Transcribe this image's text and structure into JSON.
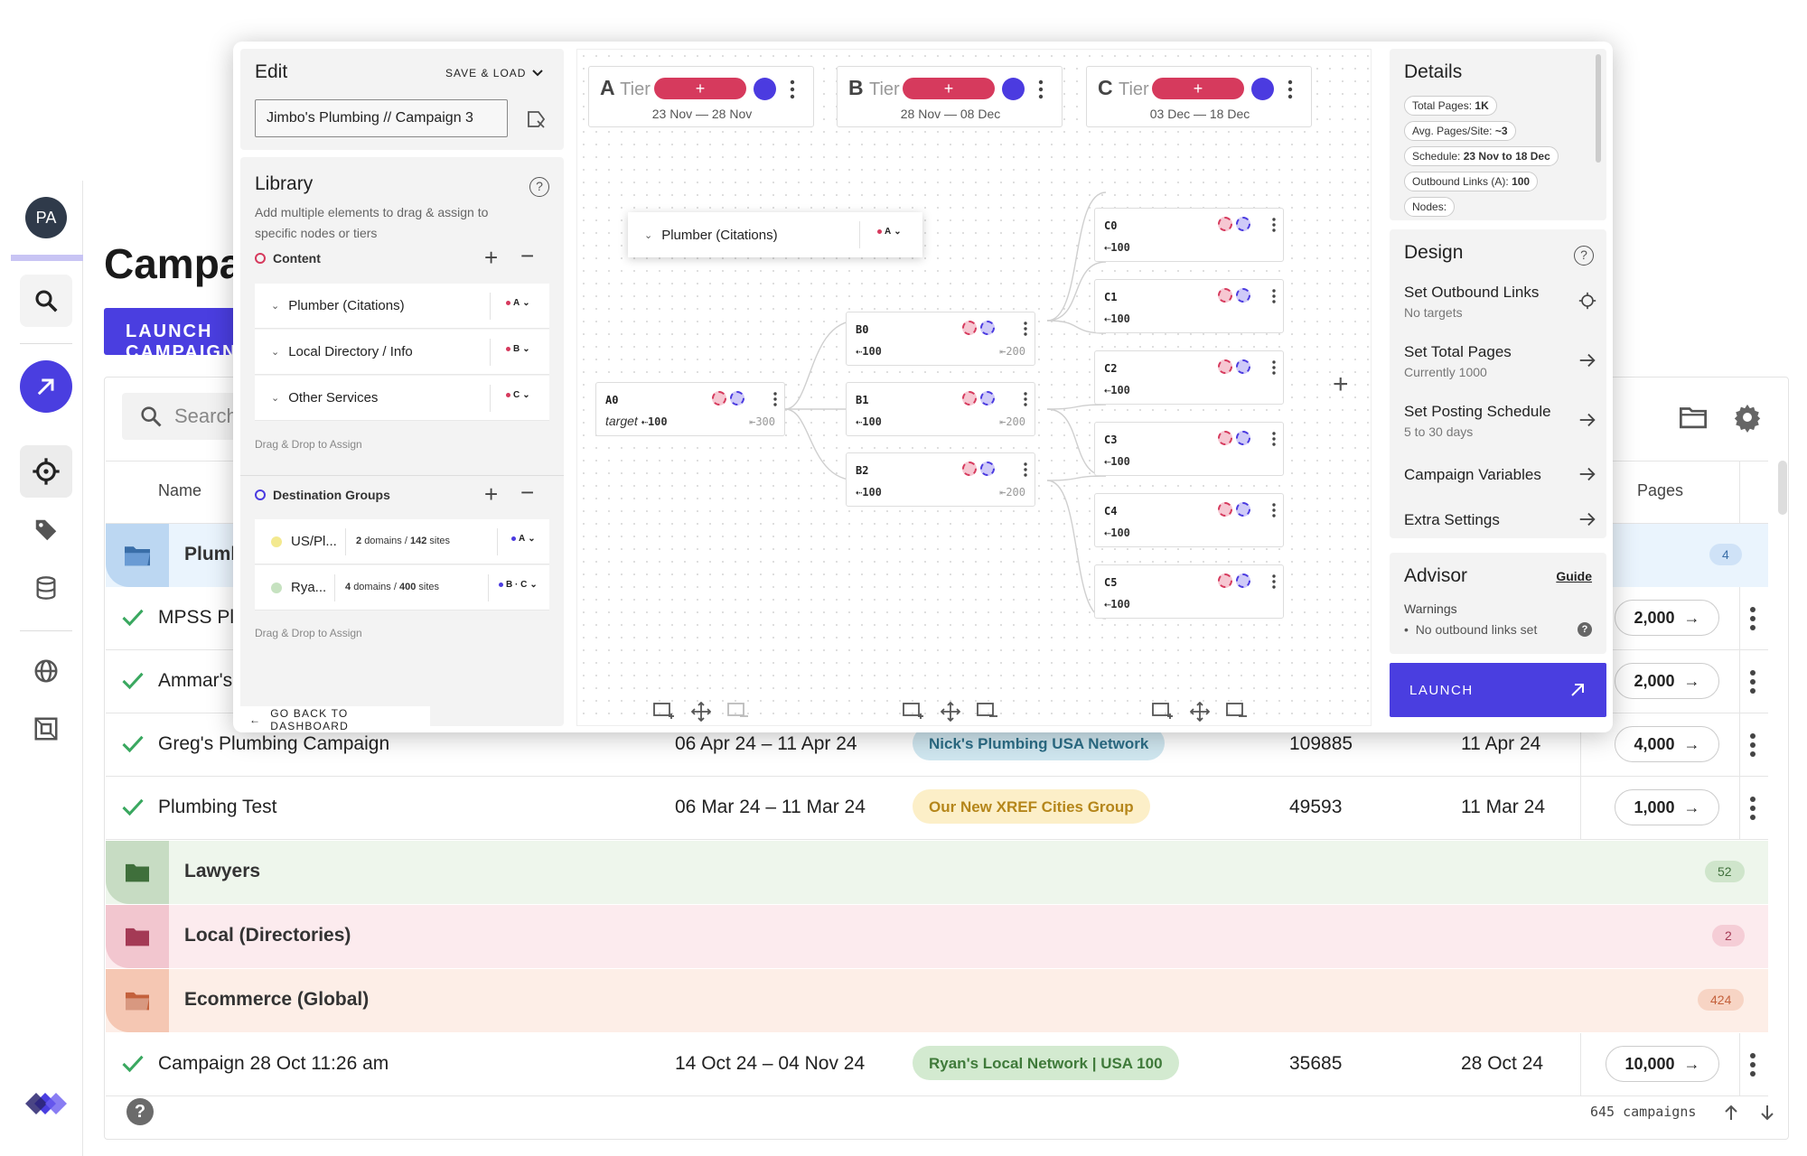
{
  "sidebar": {
    "avatar_initials": "PA"
  },
  "page": {
    "title": "Campaigns",
    "launch_button": "LAUNCH CAMPAIGN",
    "search_placeholder": "Search"
  },
  "table": {
    "headers": {
      "name": "Name",
      "pages": "Pages"
    },
    "groups_top": [
      {
        "name": "Plumbing",
        "count": "4",
        "color": "#bcd7f2",
        "bg": "#eaf4fd",
        "badge_bg": "#cfe2f7",
        "badge_fg": "#3a6ea8"
      }
    ],
    "rows_top": [
      {
        "name": "MPSS Plumbing",
        "pages": "2,000"
      },
      {
        "name": "Ammar's Plumbing",
        "pages": "2,000"
      },
      {
        "name": "Greg's Plumbing Campaign",
        "dates": "06 Apr 24 – 11 Apr 24",
        "group": "Nick's Plumbing USA Network",
        "group_bg": "#cfe6ef",
        "group_fg": "#2c6d86",
        "id": "109885",
        "date2": "11 Apr 24",
        "pages": "4,000"
      },
      {
        "name": "Plumbing Test",
        "dates": "06 Mar 24 – 11 Mar 24",
        "group": "Our New XREF Cities Group",
        "group_bg": "#fcefc8",
        "group_fg": "#b5861a",
        "id": "49593",
        "date2": "11 Mar 24",
        "pages": "1,000"
      }
    ],
    "folders": [
      {
        "name": "Lawyers",
        "count": "52",
        "icon_bg": "#c7dcc3",
        "row_bg": "#eef6ec",
        "icon_color": "#3f6f3b",
        "badge_bg": "#cfe5cb",
        "badge_fg": "#3f6f3b"
      },
      {
        "name": "Local (Directories)",
        "count": "2",
        "icon_bg": "#f2c6cf",
        "row_bg": "#fcebee",
        "icon_color": "#a43a55",
        "badge_bg": "#f5cdd6",
        "badge_fg": "#a43a55"
      },
      {
        "name": "Ecommerce (Global)",
        "count": "424",
        "icon_bg": "#f5c7b3",
        "row_bg": "#fdeee7",
        "icon_color": "#c4613c",
        "badge_bg": "#f7d4c4",
        "badge_fg": "#c4613c"
      }
    ],
    "last_row": {
      "name": "Campaign 28 Oct 11:26 am",
      "dates": "14 Oct 24 – 04 Nov 24",
      "group": "Ryan's Local Network | USA 100",
      "group_bg": "#d3ead0",
      "group_fg": "#3f7a3a",
      "id": "35685",
      "date2": "28 Oct 24",
      "pages": "10,000"
    },
    "footer_count": "645 campaigns"
  },
  "modal": {
    "edit": {
      "title": "Edit",
      "save_load": "SAVE & LOAD",
      "campaign_name": "Jimbo's Plumbing // Campaign 3"
    },
    "library": {
      "title": "Library",
      "description": "Add multiple elements to drag & assign to specific nodes or tiers",
      "content_label": "Content",
      "content_items": [
        {
          "label": "Plumber (Citations)",
          "tag": "A"
        },
        {
          "label": "Local Directory / Info",
          "tag": "B"
        },
        {
          "label": "Other Services",
          "tag": "C"
        }
      ],
      "drag_hint": "Drag & Drop to Assign",
      "dest_label": "Destination Groups",
      "dest_items": [
        {
          "label": "US/Pl...",
          "info_a": "2",
          "info_a_suffix": "domains /",
          "info_b": "142",
          "info_b_suffix": "sites",
          "tag": "A",
          "dot": "#f0e27a"
        },
        {
          "label": "Rya...",
          "info_a": "4",
          "info_a_suffix": "domains /",
          "info_b": "400",
          "info_b_suffix": "sites",
          "tag": "B · C",
          "dot": "#b9dbb3"
        }
      ],
      "drag_hint2": "Drag & Drop to Assign",
      "go_back": "GO BACK TO DASHBOARD"
    },
    "tiers": [
      {
        "letter": "A",
        "word": "Tier",
        "plus": "+",
        "range": "23 Nov — 28 Nov"
      },
      {
        "letter": "B",
        "word": "Tier",
        "plus": "+",
        "range": "28 Nov — 08 Dec"
      },
      {
        "letter": "C",
        "word": "Tier",
        "plus": "+",
        "range": "03 Dec — 18 Dec"
      }
    ],
    "floating_card": {
      "label": "Plumber (Citations)",
      "tag": "A"
    },
    "nodes": {
      "a0": {
        "id": "A0",
        "target": "target",
        "in": "100",
        "out": "300"
      },
      "b": [
        {
          "id": "B0",
          "in": "100",
          "out": "200"
        },
        {
          "id": "B1",
          "in": "100",
          "out": "200"
        },
        {
          "id": "B2",
          "in": "100",
          "out": "200"
        }
      ],
      "c": [
        {
          "id": "C0",
          "in": "100"
        },
        {
          "id": "C1",
          "in": "100"
        },
        {
          "id": "C2",
          "in": "100"
        },
        {
          "id": "C3",
          "in": "100"
        },
        {
          "id": "C4",
          "in": "100"
        },
        {
          "id": "C5",
          "in": "100"
        }
      ]
    },
    "details": {
      "title": "Details",
      "chips": [
        {
          "label": "Total Pages:",
          "value": "1K"
        },
        {
          "label": "Avg. Pages/Site:",
          "value": "~3"
        },
        {
          "label": "Schedule:",
          "value": "23 Nov to 18 Dec"
        },
        {
          "label": "Outbound Links (A):",
          "value": "100"
        },
        {
          "label": "Nodes:",
          "value": ""
        }
      ]
    },
    "design": {
      "title": "Design",
      "rows": [
        {
          "title": "Set Outbound Links",
          "sub": "No targets"
        },
        {
          "title": "Set Total Pages",
          "sub": "Currently 1000"
        },
        {
          "title": "Set Posting Schedule",
          "sub": "5 to 30 days"
        },
        {
          "title": "Campaign Variables",
          "sub": ""
        },
        {
          "title": "Extra Settings",
          "sub": ""
        }
      ]
    },
    "advisor": {
      "title": "Advisor",
      "guide": "Guide",
      "warnings_label": "Warnings",
      "warning": "No outbound links set"
    },
    "launch": "LAUNCH"
  }
}
